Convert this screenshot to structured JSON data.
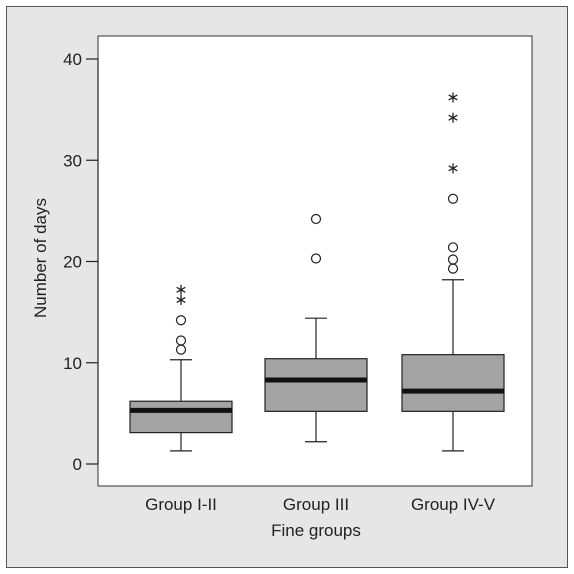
{
  "chart_data": {
    "type": "boxplot",
    "title": "",
    "xlabel": "Fine groups",
    "ylabel": "Number of days",
    "ylim": [
      0,
      40
    ],
    "yticks": [
      0,
      10,
      20,
      30,
      40
    ],
    "grid": false,
    "categories": [
      "Group I-II",
      "Group III",
      "Group IV-V"
    ],
    "boxes": [
      {
        "category": "Group I-II",
        "whisker_low": 1.3,
        "q1": 3.1,
        "median": 5.3,
        "q3": 6.2,
        "whisker_high": 10.3,
        "outliers_circle": [
          11.3,
          12.2,
          14.2
        ],
        "outliers_star": [
          16.2,
          17.2
        ]
      },
      {
        "category": "Group III",
        "whisker_low": 2.2,
        "q1": 5.2,
        "median": 8.3,
        "q3": 10.4,
        "whisker_high": 14.4,
        "outliers_circle": [
          20.3,
          24.2
        ],
        "outliers_star": []
      },
      {
        "category": "Group IV-V",
        "whisker_low": 1.3,
        "q1": 5.2,
        "median": 7.2,
        "q3": 10.8,
        "whisker_high": 18.2,
        "outliers_circle": [
          19.3,
          20.2,
          21.4,
          26.2
        ],
        "outliers_star": [
          29.2,
          34.2,
          36.2
        ]
      }
    ],
    "colors": {
      "box_fill": "#a3a3a3",
      "plot_bg": "#ffffff",
      "frame_bg": "#e6e6e6",
      "ink": "#222222"
    }
  }
}
